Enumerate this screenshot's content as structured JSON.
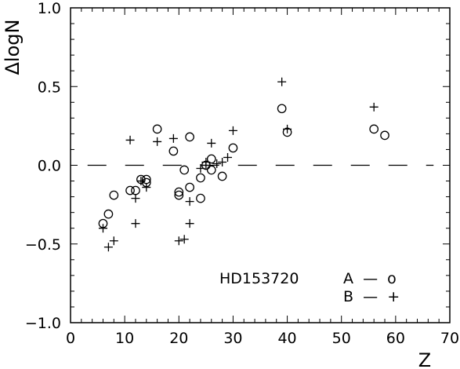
{
  "chart_data": {
    "type": "scatter",
    "title": "",
    "xlabel": "Z",
    "ylabel": "ΔlogN",
    "xlim": [
      0,
      70
    ],
    "ylim": [
      -1.0,
      1.0
    ],
    "x_ticks": [
      0,
      10,
      20,
      30,
      40,
      50,
      60,
      70
    ],
    "x_tick_labels": [
      "0",
      "10",
      "20",
      "30",
      "40",
      "50",
      "60",
      "70"
    ],
    "y_ticks": [
      -1.0,
      -0.5,
      0.0,
      0.5,
      1.0
    ],
    "y_tick_labels": [
      "−1.0",
      "−0.5",
      "0.0",
      "0.5",
      "1.0"
    ],
    "grid": false,
    "reference_line": {
      "y": 0.0,
      "x_range": [
        3,
        67
      ],
      "style": "dashed"
    },
    "annotation": {
      "label": "HD153720"
    },
    "legend": [
      {
        "text": "A  —  o",
        "marker": "circle"
      },
      {
        "text": "B  —  +",
        "marker": "plus"
      }
    ],
    "series": [
      {
        "name": "A",
        "marker": "circle",
        "points": [
          [
            6,
            -0.37
          ],
          [
            7,
            -0.31
          ],
          [
            8,
            -0.19
          ],
          [
            11,
            -0.16
          ],
          [
            12,
            -0.16
          ],
          [
            13,
            -0.09
          ],
          [
            14,
            -0.09
          ],
          [
            14,
            -0.11
          ],
          [
            16,
            0.23
          ],
          [
            19,
            0.09
          ],
          [
            20,
            -0.17
          ],
          [
            20,
            -0.19
          ],
          [
            21,
            -0.03
          ],
          [
            22,
            0.18
          ],
          [
            22,
            -0.14
          ],
          [
            24,
            -0.21
          ],
          [
            24,
            -0.08
          ],
          [
            25,
            0.0
          ],
          [
            26,
            0.04
          ],
          [
            26,
            -0.03
          ],
          [
            28,
            -0.07
          ],
          [
            30,
            0.11
          ],
          [
            39,
            0.36
          ],
          [
            40,
            0.21
          ],
          [
            56,
            0.23
          ],
          [
            58,
            0.19
          ]
        ]
      },
      {
        "name": "B",
        "marker": "plus",
        "points": [
          [
            6,
            -0.4
          ],
          [
            7,
            -0.52
          ],
          [
            8,
            -0.48
          ],
          [
            11,
            0.16
          ],
          [
            12,
            -0.21
          ],
          [
            12,
            -0.37
          ],
          [
            13,
            -0.1
          ],
          [
            14,
            -0.14
          ],
          [
            16,
            0.15
          ],
          [
            19,
            0.17
          ],
          [
            20,
            -0.48
          ],
          [
            21,
            -0.47
          ],
          [
            22,
            -0.23
          ],
          [
            22,
            -0.37
          ],
          [
            24,
            -0.02
          ],
          [
            25,
            0.02
          ],
          [
            25,
            0.0
          ],
          [
            26,
            0.14
          ],
          [
            27,
            0.01
          ],
          [
            28,
            0.02
          ],
          [
            29,
            0.05
          ],
          [
            30,
            0.22
          ],
          [
            39,
            0.53
          ],
          [
            40,
            0.23
          ],
          [
            56,
            0.37
          ]
        ]
      }
    ]
  }
}
